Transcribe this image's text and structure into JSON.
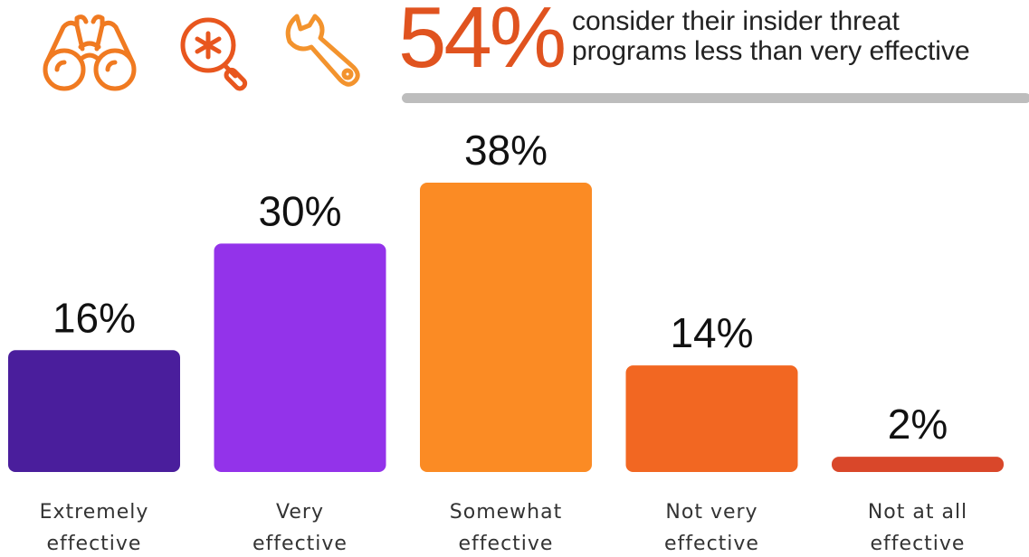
{
  "header": {
    "big_stat": "54%",
    "headline_line1": "consider their insider threat",
    "headline_line2": "programs less than very effective",
    "accent_color": "#e0531f",
    "icons": [
      "binoculars-icon",
      "magnifier-asterisk-icon",
      "wrench-icon"
    ],
    "icon_colors": [
      "#f07a21",
      "#e8561e",
      "#f3932d"
    ]
  },
  "chart_data": {
    "type": "bar",
    "unit": "%",
    "categories": [
      [
        "Extremely",
        "effective"
      ],
      [
        "Very",
        "effective"
      ],
      [
        "Somewhat",
        "effective"
      ],
      [
        "Not very",
        "effective"
      ],
      [
        "Not at all",
        "effective"
      ]
    ],
    "values": [
      16,
      30,
      38,
      14,
      2
    ],
    "value_labels": [
      "16%",
      "30%",
      "38%",
      "14%",
      "2%"
    ],
    "colors": [
      "#4a1e9c",
      "#9333ea",
      "#fb8b24",
      "#f26722",
      "#d9472a"
    ],
    "title": "",
    "xlabel": "",
    "ylabel": "",
    "ylim": [
      0,
      38
    ],
    "grid": false,
    "legend": "none"
  }
}
